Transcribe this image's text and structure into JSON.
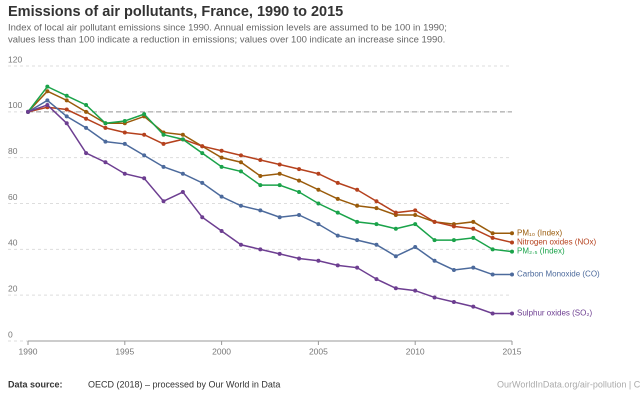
{
  "chart_data": {
    "type": "line",
    "title": "Emissions of air pollutants, France, 1990 to 2015",
    "subtitle": [
      "Index of local air pollutant emissions since 1990. Annual emission levels are assumed to be 100 in 1990;",
      "values less than 100 indicate a reduction in emissions; values over 100 indicate an increase since 1990."
    ],
    "x": [
      1990,
      1991,
      1992,
      1993,
      1994,
      1995,
      1996,
      1997,
      1998,
      1999,
      2000,
      2001,
      2002,
      2003,
      2004,
      2005,
      2006,
      2007,
      2008,
      2009,
      2010,
      2011,
      2012,
      2013,
      2014,
      2015
    ],
    "series": [
      {
        "name": "PM₁₀ (Index)",
        "color": "#9a5b0b",
        "values": [
          100,
          109,
          105,
          100,
          95,
          95,
          98,
          91,
          90,
          85,
          80,
          78,
          72,
          73,
          70,
          66,
          62,
          59,
          58,
          55,
          55,
          52,
          51,
          52,
          47,
          47
        ]
      },
      {
        "name": "Nitrogen oxides (NOx)",
        "color": "#b5411d",
        "values": [
          100,
          102,
          101,
          97,
          93,
          91,
          90,
          86,
          88,
          85,
          83,
          81,
          79,
          77,
          75,
          73,
          69,
          66,
          61,
          56,
          57,
          52,
          50,
          49,
          45,
          43
        ]
      },
      {
        "name": "PM₂.₅ (Index)",
        "color": "#1aa34a",
        "values": [
          100,
          111,
          107,
          103,
          95,
          96,
          99,
          90,
          88,
          82,
          76,
          74,
          68,
          68,
          65,
          60,
          56,
          52,
          51,
          49,
          51,
          44,
          44,
          45,
          40,
          39
        ]
      },
      {
        "name": "Carbon Monoxide (CO)",
        "color": "#4c6a9c",
        "values": [
          100,
          105,
          98,
          93,
          87,
          86,
          81,
          76,
          73,
          69,
          63,
          59,
          57,
          54,
          55,
          51,
          46,
          44,
          42,
          37,
          41,
          35,
          31,
          32,
          29,
          29
        ]
      },
      {
        "name": "Sulphur oxides (SO₂)",
        "color": "#6d3e91",
        "values": [
          100,
          103,
          95,
          82,
          78,
          73,
          71,
          61,
          65,
          54,
          48,
          42,
          40,
          38,
          36,
          35,
          33,
          32,
          27,
          23,
          22,
          19,
          17,
          15,
          12,
          12
        ]
      }
    ],
    "xlim": [
      1990,
      2015
    ],
    "xticks": [
      1990,
      1995,
      2000,
      2005,
      2010,
      2015
    ],
    "ylim": [
      0,
      120
    ],
    "yticks": [
      0,
      20,
      40,
      60,
      80,
      100,
      120
    ],
    "grid": true,
    "reference_line": 100,
    "source_label": "Data source:",
    "source": "OECD (2018) – processed by Our World in Data",
    "credit": "OurWorldInData.org/air-pollution | CC BY"
  }
}
